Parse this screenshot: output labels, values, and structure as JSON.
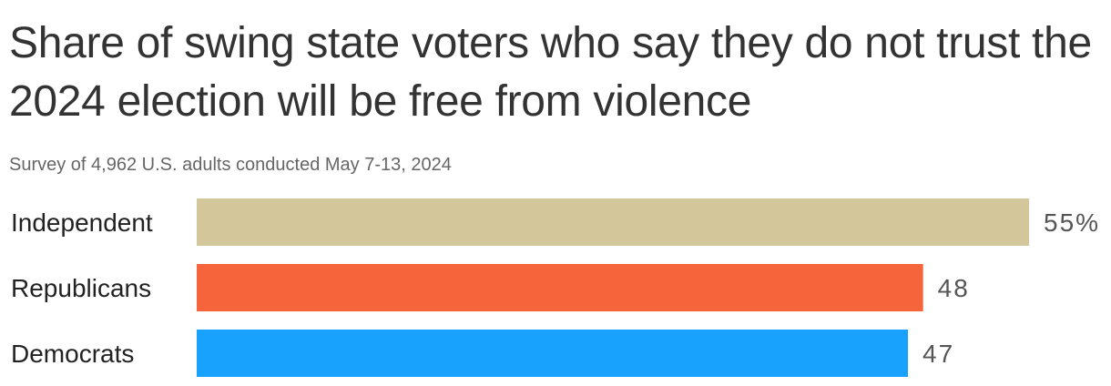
{
  "chart_data": {
    "type": "bar",
    "orientation": "horizontal",
    "title": "Share of swing state voters who say they do not trust the 2024 election will be free from violence",
    "subtitle": "Survey of 4,962 U.S. adults conducted May 7-13, 2024",
    "categories": [
      "Independent",
      "Republicans",
      "Democrats"
    ],
    "values": [
      55,
      48,
      47
    ],
    "value_labels": [
      "55%",
      "48",
      "47"
    ],
    "colors": [
      "#d3c69a",
      "#f6643c",
      "#18a1fd"
    ],
    "xlim": [
      0,
      55
    ],
    "grid": false,
    "legend": "none"
  }
}
